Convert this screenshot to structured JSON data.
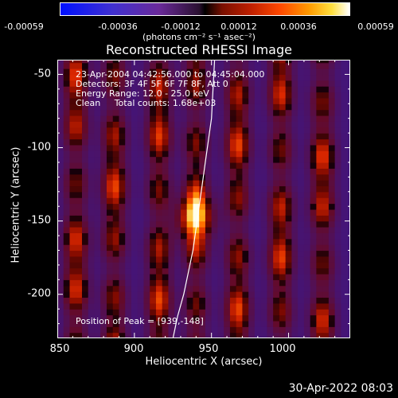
{
  "colorbar": {
    "ticks": [
      "-0.00059",
      "-0.00036",
      "-0.00012",
      "0.00012",
      "0.00036",
      "0.00059"
    ],
    "units": "(photons cm⁻² s⁻¹ asec⁻²)"
  },
  "chart_data": {
    "type": "heatmap",
    "title": "Reconstructed RHESSI Image",
    "xlabel": "Heliocentric X (arcsec)",
    "ylabel": "Heliocentric Y (arcsec)",
    "xlim": [
      850,
      1040
    ],
    "ylim": [
      -230,
      -40
    ],
    "x_ticks": [
      "850",
      "900",
      "950",
      "1000"
    ],
    "y_ticks": [
      "-50",
      "-100",
      "-150",
      "-200"
    ],
    "x_tick_values": [
      850,
      900,
      950,
      1000
    ],
    "y_tick_values": [
      -50,
      -100,
      -150,
      -200
    ],
    "colorbar_range": [
      -0.00059,
      0.00059
    ],
    "peak": [
      939,
      -148
    ],
    "annotations": [
      "23-Apr-2004 04:42:56.000 to 04:45:04.000",
      "Detectors: 3F 4F 5F 6F 7F 8F, Att 0",
      "Energy Range: 12.0 - 25.0 keV",
      "Clean     Total counts: 1.68e+03",
      "Position of Peak = [939,-148]"
    ],
    "limb_curve": {
      "x": [
        925,
        928,
        932,
        935,
        938,
        940,
        942,
        944,
        946,
        948,
        950,
        951,
        952
      ],
      "y": [
        -230,
        -215,
        -200,
        -185,
        -170,
        -155,
        -140,
        -125,
        -110,
        -95,
        -80,
        -60,
        -40
      ]
    }
  },
  "footer": {
    "timestamp": "30-Apr-2022 08:03"
  }
}
